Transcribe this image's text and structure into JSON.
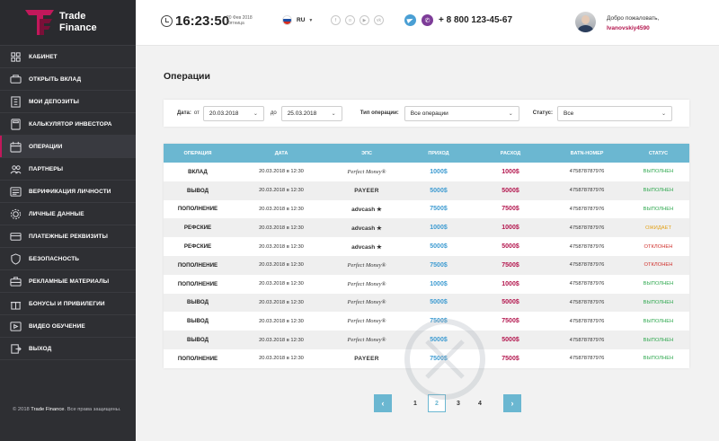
{
  "brand": {
    "line1": "Trade",
    "line2": "Finance"
  },
  "header": {
    "time": "16:23:50",
    "date_line1": "20 Фев 2018",
    "date_line2": "Пятница",
    "lang": "RU",
    "phone": "+ 8 800 123-45-67",
    "welcome": "Добро пожаловать,",
    "username": "Ivanovskiy4590"
  },
  "sidebar": {
    "items": [
      {
        "label": "КАБИНЕТ",
        "icon": "dashboard-icon"
      },
      {
        "label": "ОТКРЫТЬ ВКЛАД",
        "icon": "deposit-icon"
      },
      {
        "label": "МОИ ДЕПОЗИТЫ",
        "icon": "building-icon"
      },
      {
        "label": "КАЛЬКУЛЯТОР ИНВЕСТОРА",
        "icon": "calculator-icon"
      },
      {
        "label": "ОПЕРАЦИИ",
        "icon": "calendar-icon",
        "active": true
      },
      {
        "label": "ПАРТНЕРЫ",
        "icon": "partners-icon"
      },
      {
        "label": "ВЕРИФИКАЦИЯ ЛИЧНОСТИ",
        "icon": "id-card-icon"
      },
      {
        "label": "ЛИЧНЫЕ ДАННЫЕ",
        "icon": "gear-icon"
      },
      {
        "label": "ПЛАТЕЖНЫЕ РЕКВИЗИТЫ",
        "icon": "card-icon"
      },
      {
        "label": "БЕЗОПАСНОСТЬ",
        "icon": "shield-icon"
      },
      {
        "label": "РЕКЛАМНЫЕ МАТЕРИАЛЫ",
        "icon": "briefcase-icon"
      },
      {
        "label": "БОНУСЫ И ПРИВИЛЕГИИ",
        "icon": "gift-icon"
      },
      {
        "label": "ВИДЕО ОБУЧЕНИЕ",
        "icon": "video-icon"
      },
      {
        "label": "ВЫХОД",
        "icon": "exit-icon"
      }
    ],
    "copyright_prefix": "© 2018 ",
    "copyright_brand": "Trade Finance",
    "copyright_suffix": ". Все права защищены."
  },
  "main": {
    "title": "Операции",
    "filters": {
      "date_label": "Дата:",
      "from_label": "от",
      "from_value": "20.03.2018",
      "to_label": "до",
      "to_value": "25.03.2018",
      "type_label": "Тип операции:",
      "type_value": "Все операции",
      "status_label": "Статус:",
      "status_value": "Все"
    },
    "table": {
      "columns": [
        "ОПЕРАЦИЯ",
        "ДАТА",
        "ЭПС",
        "ПРИХОД",
        "РАСХОД",
        "BATN-НОМЕР",
        "СТАТУС"
      ],
      "rows": [
        {
          "op": "ВКЛАД",
          "date": "20.03.2018 в 12:30",
          "eps": "Perfect Money®",
          "eps_type": "pm",
          "income": "1000$",
          "expense": "1000$",
          "batch": "475878787976",
          "status": "ВЫПОЛНЕН",
          "status_type": "done"
        },
        {
          "op": "ВЫВОД",
          "date": "20.03.2018 в 12:30",
          "eps": "PAYEER",
          "eps_type": "payeer",
          "income": "5000$",
          "expense": "5000$",
          "batch": "475878787976",
          "status": "ВЫПОЛНЕН",
          "status_type": "done"
        },
        {
          "op": "ПОПОЛНЕНИЕ",
          "date": "20.03.2018 в 12:30",
          "eps": "advcash ★",
          "eps_type": "adv",
          "income": "7500$",
          "expense": "7500$",
          "batch": "475878787976",
          "status": "ВЫПОЛНЕН",
          "status_type": "done"
        },
        {
          "op": "РЕФСКИЕ",
          "date": "20.03.2018 в 12:30",
          "eps": "advcash ★",
          "eps_type": "adv",
          "income": "1000$",
          "expense": "1000$",
          "batch": "475878787976",
          "status": "ОЖИДАЕТ",
          "status_type": "wait"
        },
        {
          "op": "РЕФСКИЕ",
          "date": "20.03.2018 в 12:30",
          "eps": "advcash ★",
          "eps_type": "adv",
          "income": "5000$",
          "expense": "5000$",
          "batch": "475878787976",
          "status": "ОТКЛОНЕН",
          "status_type": "rej"
        },
        {
          "op": "ПОПОЛНЕНИЕ",
          "date": "20.03.2018 в 12:30",
          "eps": "Perfect Money®",
          "eps_type": "pm",
          "income": "7500$",
          "expense": "7500$",
          "batch": "475878787976",
          "status": "ОТКЛОНЕН",
          "status_type": "rej"
        },
        {
          "op": "ПОПОЛНЕНИЕ",
          "date": "20.03.2018 в 12:30",
          "eps": "Perfect Money®",
          "eps_type": "pm",
          "income": "1000$",
          "expense": "1000$",
          "batch": "475878787976",
          "status": "ВЫПОЛНЕН",
          "status_type": "done"
        },
        {
          "op": "ВЫВОД",
          "date": "20.03.2018 в 12:30",
          "eps": "Perfect Money®",
          "eps_type": "pm",
          "income": "5000$",
          "expense": "5000$",
          "batch": "475878787976",
          "status": "ВЫПОЛНЕН",
          "status_type": "done"
        },
        {
          "op": "ВЫВОД",
          "date": "20.03.2018 в 12:30",
          "eps": "Perfect Money®",
          "eps_type": "pm",
          "income": "7500$",
          "expense": "7500$",
          "batch": "475878787976",
          "status": "ВЫПОЛНЕН",
          "status_type": "done"
        },
        {
          "op": "ВЫВОД",
          "date": "20.03.2018 в 12:30",
          "eps": "Perfect Money®",
          "eps_type": "pm",
          "income": "5000$",
          "expense": "5000$",
          "batch": "475878787976",
          "status": "ВЫПОЛНЕН",
          "status_type": "done"
        },
        {
          "op": "ПОПОЛНЕНИЕ",
          "date": "20.03.2018 в 12:30",
          "eps": "PAYEER",
          "eps_type": "payeer",
          "income": "7500$",
          "expense": "7500$",
          "batch": "475878787976",
          "status": "ВЫПОЛНЕН",
          "status_type": "done"
        }
      ]
    },
    "pagination": {
      "prev": "‹",
      "next": "›",
      "pages": [
        "1",
        "2",
        "3",
        "4"
      ],
      "current": "2"
    }
  },
  "colors": {
    "accent": "#6bb7d1",
    "brand": "#b3154d",
    "sidebar": "#2e2f33",
    "done": "#2fa84f",
    "wait": "#e3a21a",
    "rejected": "#d0312d"
  }
}
